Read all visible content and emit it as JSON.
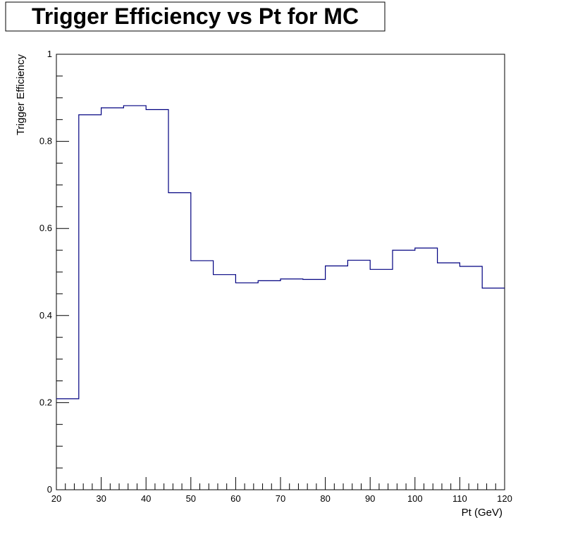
{
  "chart_data": {
    "type": "line",
    "style": "step-histogram",
    "title": "Trigger Efficiency vs Pt for MC",
    "xlabel": "Pt (GeV)",
    "ylabel": "Trigger Efficiency",
    "xlim": [
      20,
      120
    ],
    "ylim": [
      0,
      1
    ],
    "x_ticks": [
      "20",
      "30",
      "40",
      "50",
      "60",
      "70",
      "80",
      "90",
      "100",
      "110",
      "120"
    ],
    "y_ticks": [
      "0",
      "0.2",
      "0.4",
      "0.6",
      "0.8",
      "1"
    ],
    "grid": false,
    "line_color": "#000080",
    "bin_edges": [
      20,
      25,
      30,
      35,
      40,
      45,
      50,
      55,
      60,
      65,
      70,
      75,
      80,
      85,
      90,
      95,
      100,
      105,
      110,
      115,
      120
    ],
    "values": [
      0.209,
      0.861,
      0.877,
      0.882,
      0.873,
      0.682,
      0.526,
      0.494,
      0.475,
      0.48,
      0.484,
      0.483,
      0.514,
      0.527,
      0.506,
      0.55,
      0.555,
      0.521,
      0.513,
      0.463
    ]
  }
}
